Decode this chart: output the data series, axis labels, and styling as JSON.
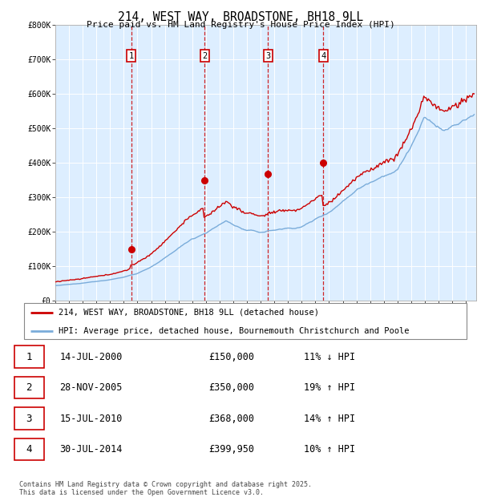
{
  "title": "214, WEST WAY, BROADSTONE, BH18 9LL",
  "subtitle": "Price paid vs. HM Land Registry's House Price Index (HPI)",
  "legend_property": "214, WEST WAY, BROADSTONE, BH18 9LL (detached house)",
  "legend_hpi": "HPI: Average price, detached house, Bournemouth Christchurch and Poole",
  "footer": "Contains HM Land Registry data © Crown copyright and database right 2025.\nThis data is licensed under the Open Government Licence v3.0.",
  "property_color": "#cc0000",
  "hpi_color": "#7aacda",
  "background_color": "#ddeeff",
  "sale_markers": [
    {
      "date_num": 2000.54,
      "price": 150000,
      "label": "1"
    },
    {
      "date_num": 2005.91,
      "price": 350000,
      "label": "2"
    },
    {
      "date_num": 2010.54,
      "price": 368000,
      "label": "3"
    },
    {
      "date_num": 2014.58,
      "price": 399950,
      "label": "4"
    }
  ],
  "vline_dates": [
    2000.54,
    2005.91,
    2010.54,
    2014.58
  ],
  "table_data": [
    {
      "num": "1",
      "date": "14-JUL-2000",
      "price": "£150,000",
      "pct": "11% ↓ HPI"
    },
    {
      "num": "2",
      "date": "28-NOV-2005",
      "price": "£350,000",
      "pct": "19% ↑ HPI"
    },
    {
      "num": "3",
      "date": "15-JUL-2010",
      "price": "£368,000",
      "pct": "14% ↑ HPI"
    },
    {
      "num": "4",
      "date": "30-JUL-2014",
      "price": "£399,950",
      "pct": "10% ↑ HPI"
    }
  ],
  "ylim": [
    0,
    800000
  ],
  "yticks": [
    0,
    100000,
    200000,
    300000,
    400000,
    500000,
    600000,
    700000,
    800000
  ],
  "ytick_labels": [
    "£0",
    "£100K",
    "£200K",
    "£300K",
    "£400K",
    "£500K",
    "£600K",
    "£700K",
    "£800K"
  ],
  "xlim_start": 1995.0,
  "xlim_end": 2025.75
}
